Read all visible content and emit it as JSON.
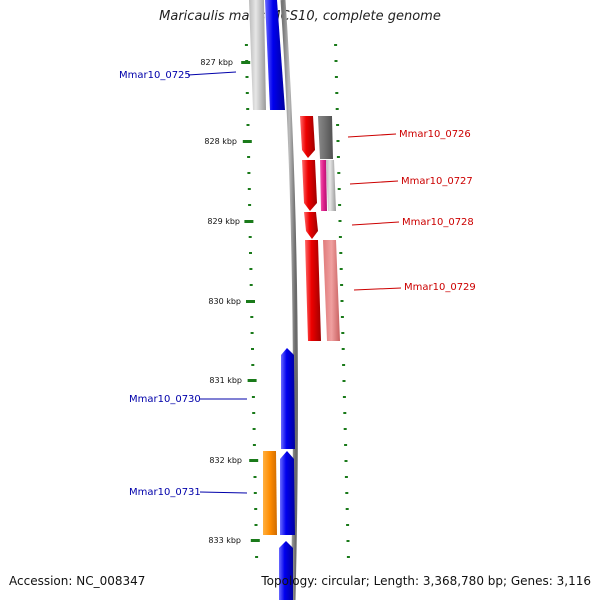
{
  "title": "Maricaulis maris MCS10, complete genome",
  "accession": "Accession: NC_008347",
  "topology": "Topology: circular; Length: 3,368,780 bp; Genes: 3,116",
  "ticks": [
    {
      "kbp": 827,
      "label": "827 kbp"
    },
    {
      "kbp": 828,
      "label": "828 kbp"
    },
    {
      "kbp": 829,
      "label": "829 kbp"
    },
    {
      "kbp": 830,
      "label": "830 kbp"
    },
    {
      "kbp": 831,
      "label": "831 kbp"
    },
    {
      "kbp": 832,
      "label": "832 kbp"
    },
    {
      "kbp": 833,
      "label": "833 kbp"
    }
  ],
  "loci": {
    "mmar10_0725": "Mmar10_0725",
    "mmar10_0726": "Mmar10_0726",
    "mmar10_0727": "Mmar10_0727",
    "mmar10_0728": "Mmar10_0728",
    "mmar10_0729": "Mmar10_0729",
    "mmar10_0730": "Mmar10_0730",
    "mmar10_0731": "Mmar10_0731"
  },
  "colors": {
    "forward_strand": "#0000ee",
    "reverse_strand": "#ee0000",
    "backbone": "#888888",
    "ticks": "#1a7a1a",
    "orange_feature": "#ff8c00",
    "magenta_feature": "#e0208c",
    "gray_feature": "#777777",
    "pink_feature": "#e88080",
    "forward_label": "#0000aa",
    "reverse_label": "#cc0000"
  }
}
